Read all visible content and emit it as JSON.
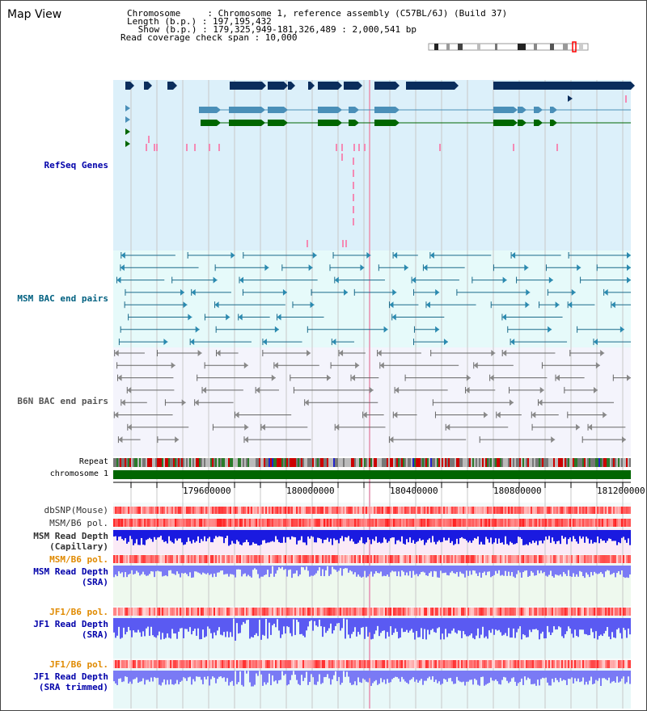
{
  "page": {
    "title": "Map View"
  },
  "info": {
    "chromosome_line": "Chromosome     : Chromosome 1, reference assembly (C57BL/6J) (Build 37)",
    "length_line": "Length (b.p.) : 197,195,432",
    "show_line": " Show (b.p.) : 179,325,949-181,326,489 : 2,000,541 bp",
    "coverage_line": "Read coverage check span : 10,000"
  },
  "tracks": {
    "refseq": "RefSeq Genes",
    "msm_bac": "MSM BAC end pairs",
    "b6n_bac": "B6N BAC end pairs",
    "repeat": "Repeat",
    "chromosome": "chromosome 1",
    "dbsnp": "dbSNP(Mouse)",
    "msm_b6_pol_a": "MSM/B6 pol.",
    "msm_read_cap_1": "MSM Read Depth",
    "msm_read_cap_2": "(Capillary)",
    "msm_b6_pol_b": "MSM/B6 pol.",
    "msm_read_sra_1": "MSM Read Depth",
    "msm_read_sra_2": "(SRA)",
    "jf1_pol_a": "JF1/B6 pol.",
    "jf1_read_sra_1": "JF1 Read Depth",
    "jf1_read_sra_2": "(SRA)",
    "jf1_pol_b": "JF1/B6 pol.",
    "jf1_read_trim_1": "JF1 Read Depth",
    "jf1_read_trim_2": "(SRA trimmed)"
  },
  "axis": {
    "ticks": [
      "179600000",
      "180000000",
      "180400000",
      "180800000",
      "181200000"
    ]
  },
  "colors": {
    "refseq_bg": "#dcf0fa",
    "msm_bg": "#e6fafa",
    "b6n_bg": "#f4f4fc",
    "gene_navy": "#0a2d5c",
    "gene_light": "#4a8fb8",
    "gene_green": "#006600",
    "msm_label": "#006080",
    "refseq_label": "#0000aa",
    "pol_label": "#e08a00",
    "depth_blue": "#0000cc",
    "chrom_green": "#006600"
  }
}
